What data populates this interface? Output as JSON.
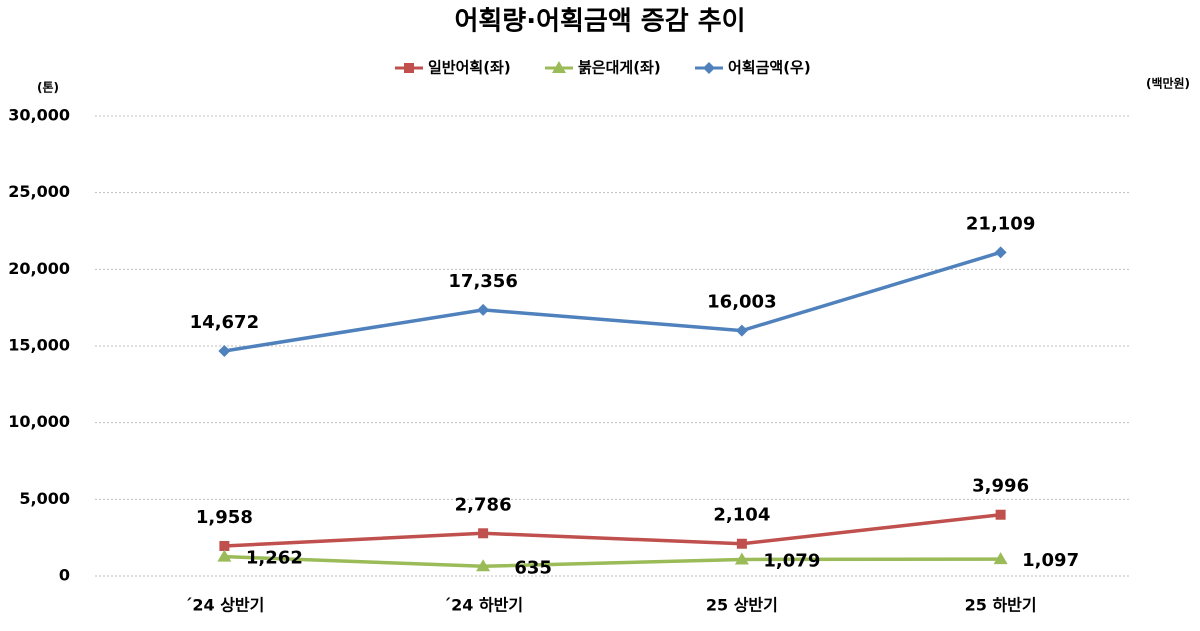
{
  "chart_data": {
    "type": "line",
    "title": "어획량·어획금액 증감 추이",
    "y_label": "(톤)",
    "y2_label": "(백만원)",
    "categories": [
      "´24 상반기",
      "´24 하반기",
      "25 상반기",
      "25 하반기"
    ],
    "series": [
      {
        "name": "일반어획(좌)",
        "color": "#c0504d",
        "marker": "square",
        "values": [
          1958,
          2786,
          2104,
          3996
        ],
        "value_labels": [
          "1,958",
          "2,786",
          "2,104",
          "3,996"
        ]
      },
      {
        "name": "붉은대게(좌)",
        "color": "#9bbb59",
        "marker": "triangle",
        "values": [
          1262,
          635,
          1079,
          1097
        ],
        "value_labels": [
          "1,262",
          "635",
          "1,079",
          "1,097"
        ]
      },
      {
        "name": "어획금액(우)",
        "color": "#4f81bd",
        "marker": "diamond",
        "values": [
          14672,
          17356,
          16003,
          21109
        ],
        "value_labels": [
          "14,672",
          "17,356",
          "16,003",
          "21,109"
        ]
      }
    ],
    "ylim": [
      0,
      30000
    ],
    "yticks": [
      0,
      {
        "value": 5000,
        "label": "5,000"
      },
      {
        "value": 10000,
        "label": "10,000"
      },
      {
        "value": 15000,
        "label": "15,000"
      },
      {
        "value": 20000,
        "label": "20,000"
      },
      {
        "value": 25000,
        "label": "25,000"
      },
      {
        "value": 30000,
        "label": "30,000"
      }
    ],
    "grid": true,
    "legend": "top"
  }
}
